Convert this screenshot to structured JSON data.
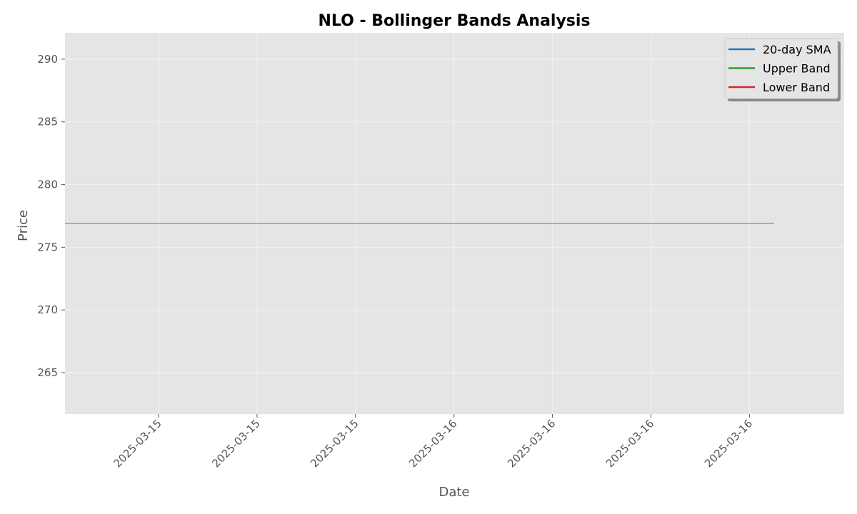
{
  "chart_data": {
    "type": "line",
    "title": "NLO - Bollinger Bands Analysis",
    "xlabel": "Date",
    "ylabel": "Price",
    "ylim": [
      261.7,
      292.1
    ],
    "yticks": [
      265,
      270,
      275,
      280,
      285,
      290
    ],
    "xtick_labels": [
      "2025-03-15",
      "2025-03-15",
      "2025-03-15",
      "2025-03-16",
      "2025-03-16",
      "2025-03-16",
      "2025-03-16"
    ],
    "xtick_rotation": 45,
    "grid": true,
    "legend": {
      "placement": "top-right",
      "entries": [
        {
          "label": "20-day SMA",
          "color": "#1f77b4"
        },
        {
          "label": "Upper Band",
          "color": "#2ca02c"
        },
        {
          "label": "Lower Band",
          "color": "#d62728"
        }
      ]
    },
    "series": [
      {
        "name": "Upper Band",
        "color": "#2ca02c",
        "x_range_ticks": [
          -0.95,
          6.25
        ],
        "values": [
          276.9,
          276.9
        ]
      }
    ],
    "colors": {
      "plot_background": "#e5e5e5",
      "grid": "#f2f2f2",
      "tick_text": "#555555"
    }
  }
}
